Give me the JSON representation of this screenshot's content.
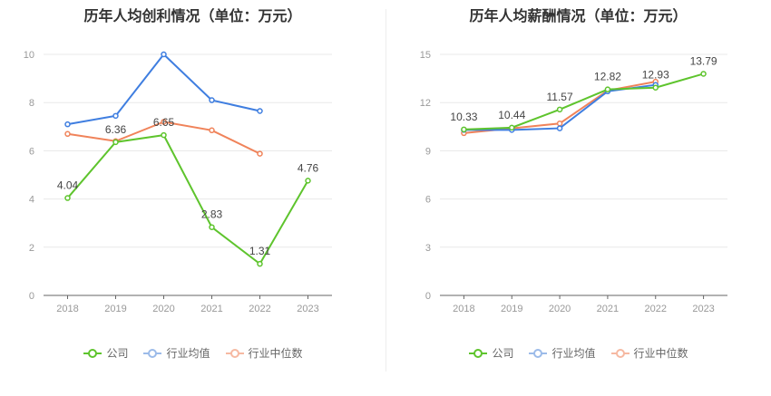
{
  "colors": {
    "company": "#5ec42d",
    "industry_avg": "#3f7ee0",
    "industry_median": "#f0835a",
    "grid": "#e8e8e8",
    "axis": "#999999",
    "label": "#444444"
  },
  "legend_labels": [
    "公司",
    "行业均值",
    "行业中位数"
  ],
  "chart_data": [
    {
      "type": "line",
      "title": "历年人均创利情况（单位：万元）",
      "categories": [
        "2018",
        "2019",
        "2020",
        "2021",
        "2022",
        "2023"
      ],
      "ylim": [
        0,
        10
      ],
      "yticks": [
        "0",
        "2",
        "4",
        "6",
        "8",
        "10"
      ],
      "series": [
        {
          "name": "公司",
          "values": [
            4.04,
            6.36,
            6.65,
            2.83,
            1.31,
            4.76
          ],
          "labels": [
            "4.04",
            "6.36",
            "6.65",
            "2.83",
            "1.31",
            "4.76"
          ]
        },
        {
          "name": "行业均值",
          "values": [
            7.1,
            7.45,
            10.0,
            8.1,
            7.65,
            null
          ]
        },
        {
          "name": "行业中位数",
          "values": [
            6.7,
            6.4,
            7.2,
            6.85,
            5.88,
            null
          ]
        }
      ]
    },
    {
      "type": "line",
      "title": "历年人均薪酬情况（单位：万元）",
      "categories": [
        "2018",
        "2019",
        "2020",
        "2021",
        "2022",
        "2023"
      ],
      "ylim": [
        0,
        15
      ],
      "yticks": [
        "0",
        "3",
        "6",
        "9",
        "12",
        "15"
      ],
      "series": [
        {
          "name": "公司",
          "values": [
            10.33,
            10.44,
            11.57,
            12.82,
            12.93,
            13.79
          ],
          "labels": [
            "10.33",
            "10.44",
            "11.57",
            "12.82",
            "12.93",
            "13.79"
          ]
        },
        {
          "name": "行业均值",
          "values": [
            10.3,
            10.3,
            10.4,
            12.7,
            13.1,
            null
          ]
        },
        {
          "name": "行业中位数",
          "values": [
            10.1,
            10.4,
            10.7,
            12.75,
            13.3,
            null
          ]
        }
      ]
    }
  ]
}
